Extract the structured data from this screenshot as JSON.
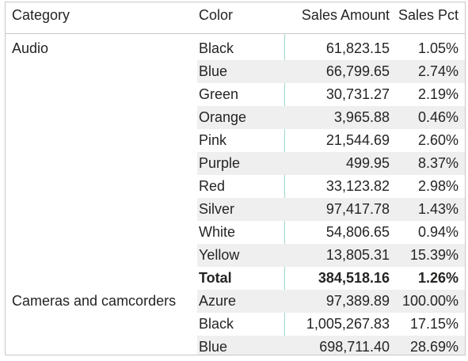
{
  "table": {
    "headers": {
      "category": "Category",
      "color": "Color",
      "sales_amount": "Sales Amount",
      "sales_pct": "Sales Pct"
    },
    "rows": [
      {
        "category": "Audio",
        "color": "Black",
        "sales_amount": "61,823.15",
        "sales_pct": "1.05%",
        "shaded": false,
        "total": false
      },
      {
        "category": "",
        "color": "Blue",
        "sales_amount": "66,799.65",
        "sales_pct": "2.74%",
        "shaded": true,
        "total": false
      },
      {
        "category": "",
        "color": "Green",
        "sales_amount": "30,731.27",
        "sales_pct": "2.19%",
        "shaded": false,
        "total": false
      },
      {
        "category": "",
        "color": "Orange",
        "sales_amount": "3,965.88",
        "sales_pct": "0.46%",
        "shaded": true,
        "total": false
      },
      {
        "category": "",
        "color": "Pink",
        "sales_amount": "21,544.69",
        "sales_pct": "2.60%",
        "shaded": false,
        "total": false
      },
      {
        "category": "",
        "color": "Purple",
        "sales_amount": "499.95",
        "sales_pct": "8.37%",
        "shaded": true,
        "total": false
      },
      {
        "category": "",
        "color": "Red",
        "sales_amount": "33,123.82",
        "sales_pct": "2.98%",
        "shaded": false,
        "total": false
      },
      {
        "category": "",
        "color": "Silver",
        "sales_amount": "97,417.78",
        "sales_pct": "1.43%",
        "shaded": true,
        "total": false
      },
      {
        "category": "",
        "color": "White",
        "sales_amount": "54,806.65",
        "sales_pct": "0.94%",
        "shaded": false,
        "total": false
      },
      {
        "category": "",
        "color": "Yellow",
        "sales_amount": "13,805.31",
        "sales_pct": "15.39%",
        "shaded": true,
        "total": false
      },
      {
        "category": "",
        "color": "Total",
        "sales_amount": "384,518.16",
        "sales_pct": "1.26%",
        "shaded": false,
        "total": true
      },
      {
        "category": "Cameras and camcorders",
        "color": "Azure",
        "sales_amount": "97,389.89",
        "sales_pct": "100.00%",
        "shaded": true,
        "total": false
      },
      {
        "category": "",
        "color": "Black",
        "sales_amount": "1,005,267.83",
        "sales_pct": "17.15%",
        "shaded": false,
        "total": false
      },
      {
        "category": "",
        "color": "Blue",
        "sales_amount": "698,711.40",
        "sales_pct": "28.69%",
        "shaded": true,
        "total": false
      }
    ]
  },
  "colors": {
    "text": "#252423",
    "border": "#c8c8c8",
    "row_band": "#efefef",
    "accent_divider": "#9fd8d0"
  }
}
